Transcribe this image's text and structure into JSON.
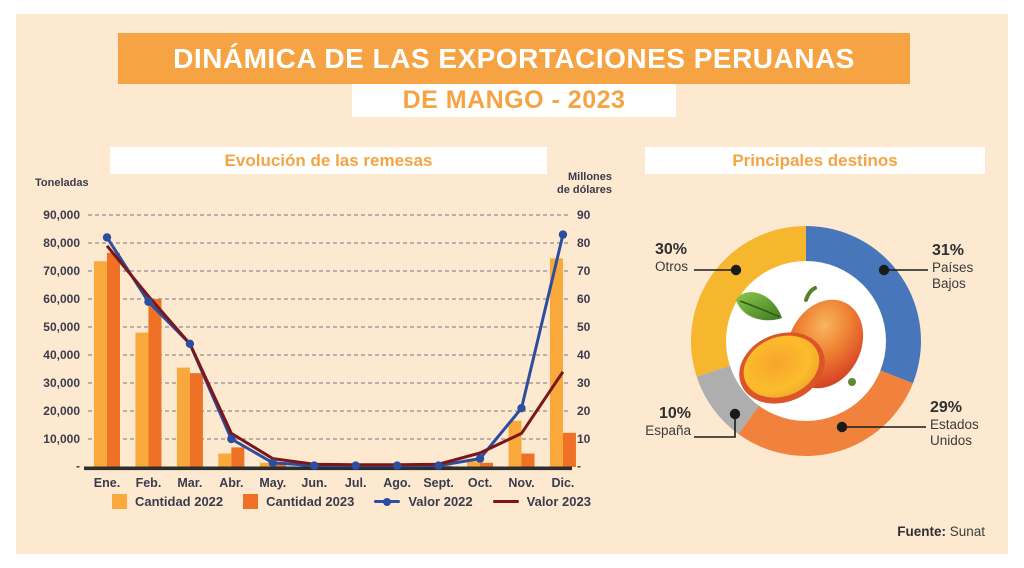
{
  "header": {
    "title": "DINÁMICA DE LAS EXPORTACIONES PERUANAS",
    "subtitle": "DE MANGO - 2023"
  },
  "source": {
    "label": "Fuente:",
    "value": "Sunat"
  },
  "colors": {
    "panel_bg": "#fce9d0",
    "accent_orange": "#f6a443",
    "grid": "#8f8f8f",
    "axis_line": "#2d2d2d",
    "text_dark": "#3b3b4d",
    "callout_black": "#1a1a1a"
  },
  "chart_data": [
    {
      "type": "bar+line",
      "title": "Evolución de las remesas",
      "categories": [
        "Ene.",
        "Feb.",
        "Mar.",
        "Abr.",
        "May.",
        "Jun.",
        "Jul.",
        "Ago.",
        "Sept.",
        "Oct.",
        "Nov.",
        "Dic."
      ],
      "left_axis": {
        "title": "Toneladas",
        "ticks": [
          "90,000",
          "80,000",
          "70,000",
          "60,000",
          "50,000",
          "40,000",
          "30,000",
          "20,000",
          "10,000"
        ],
        "zero_label": "-",
        "max": 90000
      },
      "right_axis": {
        "title": "Millones\nde dólares",
        "ticks": [
          "90",
          "80",
          "70",
          "60",
          "50",
          "40",
          "30",
          "20",
          "10"
        ],
        "zero_label": "-",
        "max": 90
      },
      "grid": true,
      "legend_position": "bottom",
      "series": [
        {
          "name": "Cantidad 2022",
          "kind": "bar",
          "axis": "left",
          "color": "#f9a93c",
          "values": [
            73500,
            48000,
            35500,
            4800,
            1500,
            500,
            400,
            400,
            500,
            2000,
            16500,
            74500
          ]
        },
        {
          "name": "Cantidad 2023",
          "kind": "bar",
          "axis": "left",
          "color": "#ee7125",
          "values": [
            76500,
            60000,
            33500,
            7000,
            1800,
            400,
            300,
            300,
            400,
            1500,
            4800,
            12200
          ]
        },
        {
          "name": "Valor 2022",
          "kind": "line",
          "axis": "right",
          "color": "#2c4da0",
          "markers": true,
          "values": [
            82,
            59,
            44,
            10,
            1.5,
            0.5,
            0.5,
            0.5,
            0.5,
            3,
            21,
            83
          ]
        },
        {
          "name": "Valor 2023",
          "kind": "line",
          "axis": "right",
          "color": "#7b1618",
          "markers": false,
          "values": [
            79,
            61,
            44,
            12,
            3,
            1,
            0.8,
            0.8,
            1,
            5,
            12,
            34
          ]
        }
      ]
    },
    {
      "type": "pie",
      "title": "Principales destinos",
      "donut": true,
      "start_angle_deg": 0,
      "segments": [
        {
          "label": "Países Bajos",
          "value": 31,
          "pct_label": "31%",
          "lines": [
            "Países",
            "Bajos"
          ],
          "color": "#4776ba"
        },
        {
          "label": "Estados Unidos",
          "value": 29,
          "pct_label": "29%",
          "lines": [
            "Estados",
            "Unidos"
          ],
          "color": "#f0823e"
        },
        {
          "label": "España",
          "value": 10,
          "pct_label": "10%",
          "lines": [
            "España"
          ],
          "color": "#aeaeae"
        },
        {
          "label": "Otros",
          "value": 30,
          "pct_label": "30%",
          "lines": [
            "Otros"
          ],
          "color": "#f6b62d"
        }
      ],
      "center_image": "mango"
    }
  ]
}
